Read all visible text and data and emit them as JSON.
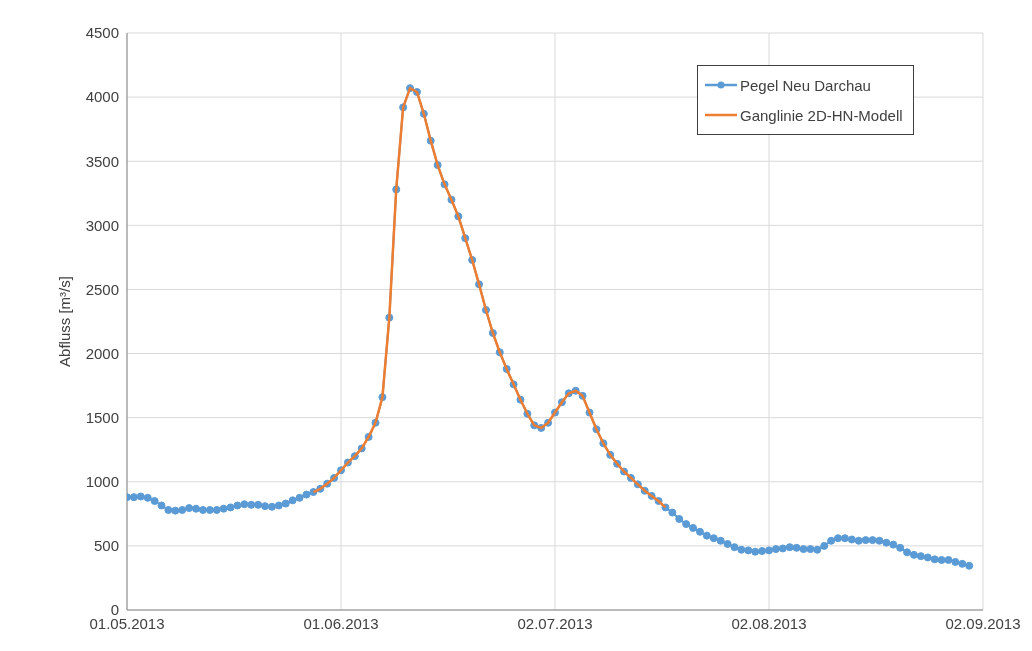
{
  "chart_data": {
    "type": "line",
    "ylabel": "Abfluss [m³/s]",
    "xlim": [
      "2013-05-01",
      "2013-09-02"
    ],
    "xticks": [
      {
        "value": "2013-05-01",
        "label": "01.05.2013"
      },
      {
        "value": "2013-06-01",
        "label": "01.06.2013"
      },
      {
        "value": "2013-07-02",
        "label": "02.07.2013"
      },
      {
        "value": "2013-08-02",
        "label": "02.08.2013"
      },
      {
        "value": "2013-09-02",
        "label": "02.09.2013"
      }
    ],
    "ylim": [
      0,
      4500
    ],
    "yticks": [
      0,
      500,
      1000,
      1500,
      2000,
      2500,
      3000,
      3500,
      4000,
      4500
    ],
    "grid": true,
    "legend": "top right",
    "series": [
      {
        "name": "Pegel Neu Darchau",
        "color": "#5b9bd5",
        "marker": "circle",
        "x": [
          "2013-05-01",
          "2013-05-02",
          "2013-05-03",
          "2013-05-04",
          "2013-05-05",
          "2013-05-06",
          "2013-05-07",
          "2013-05-08",
          "2013-05-09",
          "2013-05-10",
          "2013-05-11",
          "2013-05-12",
          "2013-05-13",
          "2013-05-14",
          "2013-05-15",
          "2013-05-16",
          "2013-05-17",
          "2013-05-18",
          "2013-05-19",
          "2013-05-20",
          "2013-05-21",
          "2013-05-22",
          "2013-05-23",
          "2013-05-24",
          "2013-05-25",
          "2013-05-26",
          "2013-05-27",
          "2013-05-28",
          "2013-05-29",
          "2013-05-30",
          "2013-05-31",
          "2013-06-01",
          "2013-06-02",
          "2013-06-03",
          "2013-06-04",
          "2013-06-05",
          "2013-06-06",
          "2013-06-07",
          "2013-06-08",
          "2013-06-09",
          "2013-06-10",
          "2013-06-11",
          "2013-06-12",
          "2013-06-13",
          "2013-06-14",
          "2013-06-15",
          "2013-06-16",
          "2013-06-17",
          "2013-06-18",
          "2013-06-19",
          "2013-06-20",
          "2013-06-21",
          "2013-06-22",
          "2013-06-23",
          "2013-06-24",
          "2013-06-25",
          "2013-06-26",
          "2013-06-27",
          "2013-06-28",
          "2013-06-29",
          "2013-06-30",
          "2013-07-01",
          "2013-07-02",
          "2013-07-03",
          "2013-07-04",
          "2013-07-05",
          "2013-07-06",
          "2013-07-07",
          "2013-07-08",
          "2013-07-09",
          "2013-07-10",
          "2013-07-11",
          "2013-07-12",
          "2013-07-13",
          "2013-07-14",
          "2013-07-15",
          "2013-07-16",
          "2013-07-17",
          "2013-07-18",
          "2013-07-19",
          "2013-07-20",
          "2013-07-21",
          "2013-07-22",
          "2013-07-23",
          "2013-07-24",
          "2013-07-25",
          "2013-07-26",
          "2013-07-27",
          "2013-07-28",
          "2013-07-29",
          "2013-07-30",
          "2013-07-31",
          "2013-08-01",
          "2013-08-02",
          "2013-08-03",
          "2013-08-04",
          "2013-08-05",
          "2013-08-06",
          "2013-08-07",
          "2013-08-08",
          "2013-08-09",
          "2013-08-10",
          "2013-08-11",
          "2013-08-12",
          "2013-08-13",
          "2013-08-14",
          "2013-08-15",
          "2013-08-16",
          "2013-08-17",
          "2013-08-18",
          "2013-08-19",
          "2013-08-20",
          "2013-08-21",
          "2013-08-22",
          "2013-08-23",
          "2013-08-24",
          "2013-08-25",
          "2013-08-26",
          "2013-08-27",
          "2013-08-28",
          "2013-08-29",
          "2013-08-30",
          "2013-08-31"
        ],
        "values": [
          880,
          880,
          885,
          875,
          850,
          815,
          780,
          775,
          780,
          795,
          790,
          780,
          780,
          780,
          790,
          800,
          815,
          825,
          820,
          820,
          810,
          805,
          815,
          830,
          855,
          875,
          900,
          920,
          945,
          985,
          1030,
          1090,
          1150,
          1200,
          1260,
          1350,
          1460,
          1660,
          2280,
          3280,
          3920,
          4070,
          4040,
          3870,
          3660,
          3470,
          3320,
          3200,
          3070,
          2900,
          2730,
          2540,
          2340,
          2160,
          2010,
          1880,
          1760,
          1640,
          1530,
          1440,
          1420,
          1460,
          1540,
          1620,
          1690,
          1710,
          1670,
          1540,
          1410,
          1300,
          1210,
          1140,
          1080,
          1030,
          980,
          930,
          890,
          850,
          800,
          760,
          710,
          670,
          640,
          610,
          580,
          560,
          540,
          515,
          490,
          470,
          465,
          455,
          460,
          465,
          475,
          480,
          490,
          485,
          475,
          475,
          470,
          500,
          540,
          560,
          560,
          550,
          540,
          545,
          545,
          540,
          525,
          510,
          485,
          450,
          430,
          420,
          410,
          395,
          390,
          390,
          375,
          360,
          345
        ]
      },
      {
        "name": "Ganglinie 2D-HN-Modell",
        "color": "#ed7d31",
        "marker": "none",
        "x": [
          "2013-05-28",
          "2013-05-29",
          "2013-05-30",
          "2013-05-31",
          "2013-06-01",
          "2013-06-02",
          "2013-06-03",
          "2013-06-04",
          "2013-06-05",
          "2013-06-06",
          "2013-06-07",
          "2013-06-08",
          "2013-06-09",
          "2013-06-10",
          "2013-06-11",
          "2013-06-12",
          "2013-06-13",
          "2013-06-14",
          "2013-06-15",
          "2013-06-16",
          "2013-06-17",
          "2013-06-18",
          "2013-06-19",
          "2013-06-20",
          "2013-06-21",
          "2013-06-22",
          "2013-06-23",
          "2013-06-24",
          "2013-06-25",
          "2013-06-26",
          "2013-06-27",
          "2013-06-28",
          "2013-06-29",
          "2013-06-30",
          "2013-07-01",
          "2013-07-02",
          "2013-07-03",
          "2013-07-04",
          "2013-07-05",
          "2013-07-06",
          "2013-07-07",
          "2013-07-08",
          "2013-07-09",
          "2013-07-10",
          "2013-07-11",
          "2013-07-12",
          "2013-07-13",
          "2013-07-14",
          "2013-07-15",
          "2013-07-16",
          "2013-07-17",
          "2013-07-18"
        ],
        "values": [
          920,
          945,
          985,
          1030,
          1090,
          1150,
          1200,
          1260,
          1350,
          1460,
          1660,
          2280,
          3280,
          3920,
          4070,
          4040,
          3870,
          3660,
          3470,
          3320,
          3200,
          3070,
          2900,
          2730,
          2540,
          2340,
          2160,
          2010,
          1880,
          1760,
          1640,
          1530,
          1440,
          1420,
          1460,
          1540,
          1620,
          1690,
          1710,
          1670,
          1540,
          1410,
          1300,
          1210,
          1140,
          1080,
          1030,
          980,
          930,
          890,
          850,
          800
        ]
      }
    ]
  }
}
